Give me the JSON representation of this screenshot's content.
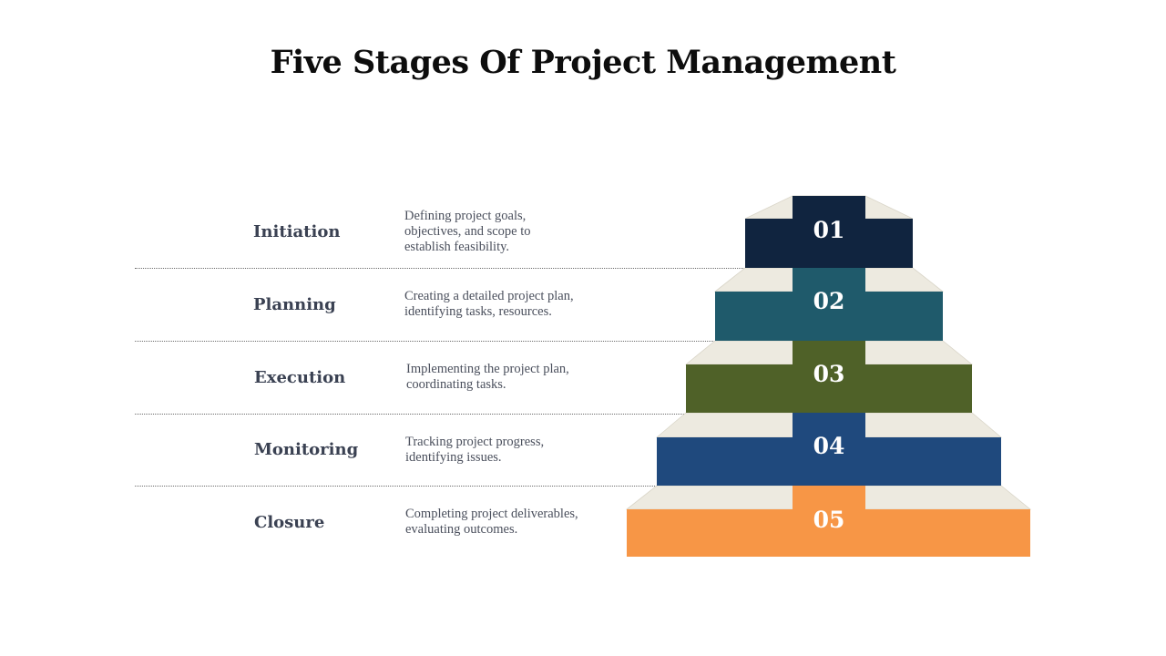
{
  "title": "Five Stages Of Project Management",
  "stages": [
    {
      "number": "01",
      "name": "Initiation",
      "description": [
        "Defining project goals,",
        "objectives, and scope to",
        "establish feasibility."
      ],
      "color": "#10243f"
    },
    {
      "number": "02",
      "name": "Planning",
      "description": [
        "Creating a detailed project plan,",
        "identifying tasks, resources."
      ],
      "color": "#1f5a6b"
    },
    {
      "number": "03",
      "name": "Execution",
      "description": [
        "Implementing the project plan,",
        "coordinating tasks."
      ],
      "color": "#4f6128"
    },
    {
      "number": "04",
      "name": "Monitoring",
      "description": [
        "Tracking project progress,",
        "identifying issues."
      ],
      "color": "#1f497d"
    },
    {
      "number": "05",
      "name": "Closure",
      "description": [
        "Completing project deliverables,",
        "evaluating outcomes."
      ],
      "color": "#f79646"
    }
  ],
  "step_color": "#edeae0"
}
